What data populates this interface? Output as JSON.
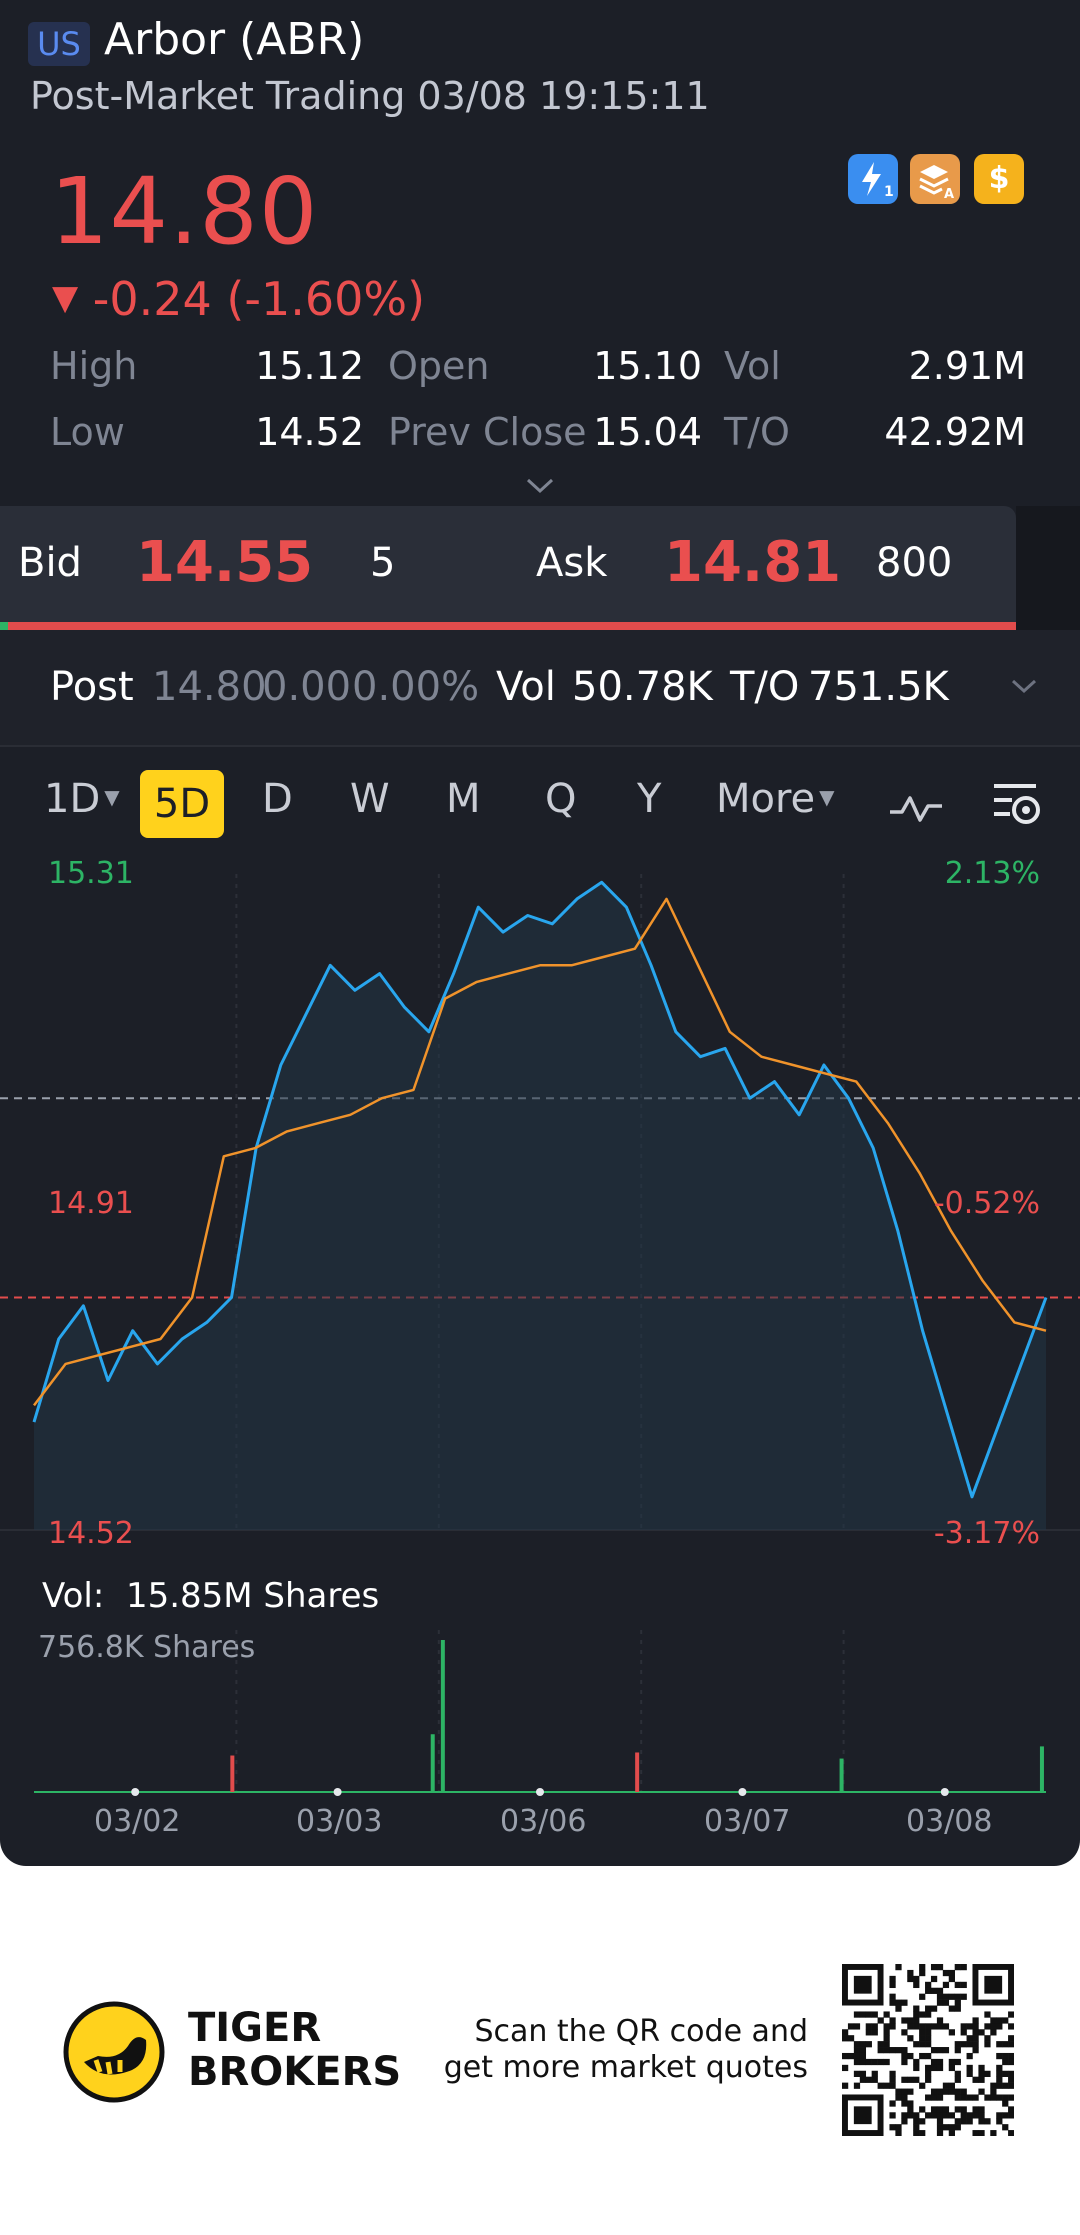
{
  "header": {
    "market_badge": "US",
    "ticker_title": "Arbor (ABR)",
    "session_line": "Post-Market Trading 03/08 19:15:11",
    "icons": [
      "lightning-1-icon",
      "layers-a-icon",
      "dollar-icon"
    ],
    "icon_colors": [
      "#3a8ef0",
      "#e89a4a",
      "#f5b21c"
    ]
  },
  "quote": {
    "price": "14.80",
    "change_arrow": "▼",
    "change": "-0.24 (-1.60%)",
    "color_down": "#ea4f4f"
  },
  "stats": {
    "high_label": "High",
    "high": "15.12",
    "open_label": "Open",
    "open": "15.10",
    "vol_label": "Vol",
    "vol": "2.91M",
    "low_label": "Low",
    "low": "14.52",
    "prev_label": "Prev Close",
    "prev": "15.04",
    "to_label": "T/O",
    "to": "42.92M"
  },
  "bidask": {
    "bid_label": "Bid",
    "bid_price": "14.55",
    "bid_size": "5",
    "ask_label": "Ask",
    "ask_price": "14.81",
    "ask_size": "800"
  },
  "post": {
    "label": "Post",
    "price": "14.80",
    "change": "0.00",
    "pct": "0.00%",
    "vol_label": "Vol",
    "vol": "50.78K",
    "to_label": "T/O",
    "to": "751.5K"
  },
  "tabs": {
    "items": [
      "1D",
      "5D",
      "D",
      "W",
      "M",
      "Q",
      "Y",
      "More"
    ],
    "active": "5D"
  },
  "chart_data": {
    "type": "line",
    "y_left_ticks": [
      "15.31",
      "14.91",
      "14.52"
    ],
    "y_right_ticks": [
      "2.13%",
      "-0.52%",
      "-3.17%"
    ],
    "ylim": [
      14.52,
      15.31
    ],
    "prev_close": 15.04,
    "last_price": 14.8,
    "days": [
      "03/02",
      "03/03",
      "03/06",
      "03/07",
      "03/08"
    ],
    "series": [
      {
        "color": "#29a6ee",
        "values": [
          14.65,
          14.75,
          14.79,
          14.7,
          14.76,
          14.72,
          14.75,
          14.77,
          14.8,
          14.98,
          15.08,
          15.14,
          15.2,
          15.17,
          15.19,
          15.15,
          15.12,
          15.19,
          15.27,
          15.24,
          15.26,
          15.25,
          15.28,
          15.3,
          15.27,
          15.2,
          15.12,
          15.09,
          15.1,
          15.04,
          15.06,
          15.02,
          15.08,
          15.04,
          14.98,
          14.88,
          14.76,
          14.66,
          14.56,
          14.64,
          14.72,
          14.8
        ]
      },
      {
        "color": "#f0932b",
        "values": [
          14.67,
          14.72,
          14.73,
          14.74,
          14.75,
          14.8,
          14.97,
          14.98,
          15.0,
          15.01,
          15.02,
          15.04,
          15.05,
          15.16,
          15.18,
          15.19,
          15.2,
          15.2,
          15.21,
          15.22,
          15.28,
          15.2,
          15.12,
          15.09,
          15.08,
          15.07,
          15.06,
          15.01,
          14.95,
          14.88,
          14.82,
          14.77,
          14.76
        ]
      }
    ]
  },
  "volume": {
    "label": "Vol:",
    "total": "15.85M Shares",
    "scale_label": "756.8K Shares",
    "bars": [
      {
        "day": 0.98,
        "value": 0.24,
        "color": "#e24c4c"
      },
      {
        "day": 1.97,
        "value": 0.38,
        "color": "#2db465"
      },
      {
        "day": 2.02,
        "value": 1.0,
        "color": "#2db465"
      },
      {
        "day": 2.98,
        "value": 0.26,
        "color": "#e24c4c"
      },
      {
        "day": 3.99,
        "value": 0.22,
        "color": "#2db465"
      },
      {
        "day": 4.98,
        "value": 0.3,
        "color": "#2db465"
      }
    ]
  },
  "footer": {
    "brand_line1": "TIGER",
    "brand_line2": "BROKERS",
    "cta_line1": "Scan the QR code and",
    "cta_line2": "get more market quotes"
  }
}
